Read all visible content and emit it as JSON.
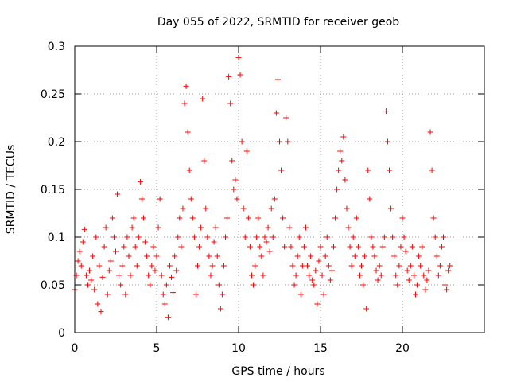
{
  "chart_data": {
    "type": "scatter",
    "title": "Day 055 of 2022, SRMTID for receiver geob",
    "xlabel": "GPS time / hours",
    "ylabel": "SRMTID / TECUs",
    "xlim": [
      0,
      25
    ],
    "ylim": [
      0,
      0.3
    ],
    "x_ticks": [
      0,
      5,
      10,
      15,
      20
    ],
    "x_tick_labels": [
      "0",
      "5",
      "10",
      "15",
      "20"
    ],
    "y_ticks": [
      0,
      0.05,
      0.1,
      0.15,
      0.2,
      0.25,
      0.3
    ],
    "y_tick_labels": [
      "0",
      "0.05",
      "0.1",
      "0.15",
      "0.2",
      "0.25",
      "0.3"
    ],
    "grid": true,
    "marker": "+",
    "color": "#ff0000",
    "series": [
      {
        "name": "SRMTID",
        "points": [
          [
            0.0,
            0.045
          ],
          [
            0.1,
            0.06
          ],
          [
            0.2,
            0.075
          ],
          [
            0.3,
            0.085
          ],
          [
            0.4,
            0.07
          ],
          [
            0.5,
            0.095
          ],
          [
            0.6,
            0.108
          ],
          [
            0.7,
            0.06
          ],
          [
            0.8,
            0.05
          ],
          [
            0.9,
            0.065
          ],
          [
            1.0,
            0.055
          ],
          [
            1.1,
            0.08
          ],
          [
            1.2,
            0.045
          ],
          [
            1.3,
            0.1
          ],
          [
            1.4,
            0.03
          ],
          [
            1.5,
            0.07
          ],
          [
            1.6,
            0.022
          ],
          [
            1.7,
            0.058
          ],
          [
            1.8,
            0.09
          ],
          [
            1.9,
            0.11
          ],
          [
            2.0,
            0.04
          ],
          [
            2.1,
            0.065
          ],
          [
            2.2,
            0.075
          ],
          [
            2.3,
            0.12
          ],
          [
            2.4,
            0.1
          ],
          [
            2.5,
            0.085
          ],
          [
            2.6,
            0.145
          ],
          [
            2.7,
            0.06
          ],
          [
            2.8,
            0.05
          ],
          [
            2.9,
            0.07
          ],
          [
            3.0,
            0.09
          ],
          [
            3.1,
            0.04
          ],
          [
            3.2,
            0.1
          ],
          [
            3.3,
            0.08
          ],
          [
            3.4,
            0.06
          ],
          [
            3.5,
            0.11
          ],
          [
            3.6,
            0.12
          ],
          [
            3.7,
            0.09
          ],
          [
            3.8,
            0.07
          ],
          [
            3.9,
            0.1
          ],
          [
            4.0,
            0.158
          ],
          [
            4.1,
            0.14
          ],
          [
            4.2,
            0.12
          ],
          [
            4.3,
            0.095
          ],
          [
            4.4,
            0.08
          ],
          [
            4.5,
            0.06
          ],
          [
            4.6,
            0.05
          ],
          [
            4.7,
            0.07
          ],
          [
            4.8,
            0.09
          ],
          [
            4.9,
            0.065
          ],
          [
            5.0,
            0.08
          ],
          [
            5.1,
            0.11
          ],
          [
            5.2,
            0.14
          ],
          [
            5.3,
            0.06
          ],
          [
            5.4,
            0.04
          ],
          [
            5.5,
            0.03
          ],
          [
            5.6,
            0.05
          ],
          [
            5.7,
            0.016
          ],
          [
            5.8,
            0.07
          ],
          [
            5.9,
            0.058
          ],
          [
            6.0,
            0.042
          ],
          [
            6.1,
            0.08
          ],
          [
            6.2,
            0.065
          ],
          [
            6.3,
            0.1
          ],
          [
            6.4,
            0.12
          ],
          [
            6.5,
            0.09
          ],
          [
            6.6,
            0.13
          ],
          [
            6.7,
            0.24
          ],
          [
            6.8,
            0.258
          ],
          [
            6.9,
            0.21
          ],
          [
            7.0,
            0.17
          ],
          [
            7.1,
            0.14
          ],
          [
            7.2,
            0.12
          ],
          [
            7.3,
            0.1
          ],
          [
            7.4,
            0.04
          ],
          [
            7.5,
            0.07
          ],
          [
            7.6,
            0.09
          ],
          [
            7.7,
            0.11
          ],
          [
            7.8,
            0.245
          ],
          [
            7.9,
            0.18
          ],
          [
            8.0,
            0.13
          ],
          [
            8.1,
            0.1
          ],
          [
            8.2,
            0.08
          ],
          [
            8.3,
            0.06
          ],
          [
            8.4,
            0.07
          ],
          [
            8.5,
            0.095
          ],
          [
            8.6,
            0.11
          ],
          [
            8.7,
            0.08
          ],
          [
            8.8,
            0.05
          ],
          [
            8.9,
            0.025
          ],
          [
            9.0,
            0.04
          ],
          [
            9.1,
            0.07
          ],
          [
            9.2,
            0.1
          ],
          [
            9.3,
            0.12
          ],
          [
            9.4,
            0.268
          ],
          [
            9.5,
            0.24
          ],
          [
            9.6,
            0.18
          ],
          [
            9.7,
            0.15
          ],
          [
            9.8,
            0.16
          ],
          [
            9.9,
            0.14
          ],
          [
            10.0,
            0.288
          ],
          [
            10.1,
            0.27
          ],
          [
            10.2,
            0.2
          ],
          [
            10.3,
            0.13
          ],
          [
            10.4,
            0.1
          ],
          [
            10.5,
            0.19
          ],
          [
            10.6,
            0.12
          ],
          [
            10.7,
            0.09
          ],
          [
            10.8,
            0.06
          ],
          [
            10.9,
            0.05
          ],
          [
            11.0,
            0.07
          ],
          [
            11.1,
            0.1
          ],
          [
            11.2,
            0.12
          ],
          [
            11.3,
            0.09
          ],
          [
            11.4,
            0.08
          ],
          [
            11.5,
            0.06
          ],
          [
            11.6,
            0.1
          ],
          [
            11.7,
            0.095
          ],
          [
            11.8,
            0.11
          ],
          [
            11.9,
            0.085
          ],
          [
            12.0,
            0.13
          ],
          [
            12.1,
            0.1
          ],
          [
            12.2,
            0.14
          ],
          [
            12.3,
            0.23
          ],
          [
            12.4,
            0.265
          ],
          [
            12.5,
            0.2
          ],
          [
            12.6,
            0.17
          ],
          [
            12.7,
            0.12
          ],
          [
            12.8,
            0.09
          ],
          [
            12.9,
            0.225
          ],
          [
            13.0,
            0.2
          ],
          [
            13.1,
            0.11
          ],
          [
            13.2,
            0.09
          ],
          [
            13.3,
            0.07
          ],
          [
            13.4,
            0.05
          ],
          [
            13.5,
            0.06
          ],
          [
            13.6,
            0.08
          ],
          [
            13.7,
            0.1
          ],
          [
            13.8,
            0.04
          ],
          [
            13.9,
            0.07
          ],
          [
            14.0,
            0.09
          ],
          [
            14.1,
            0.11
          ],
          [
            14.2,
            0.07
          ],
          [
            14.3,
            0.06
          ],
          [
            14.4,
            0.08
          ],
          [
            14.5,
            0.055
          ],
          [
            14.6,
            0.05
          ],
          [
            14.7,
            0.065
          ],
          [
            14.8,
            0.03
          ],
          [
            14.9,
            0.075
          ],
          [
            15.0,
            0.09
          ],
          [
            15.1,
            0.06
          ],
          [
            15.2,
            0.04
          ],
          [
            15.3,
            0.08
          ],
          [
            15.4,
            0.1
          ],
          [
            15.5,
            0.07
          ],
          [
            15.6,
            0.055
          ],
          [
            15.7,
            0.065
          ],
          [
            15.8,
            0.09
          ],
          [
            15.9,
            0.12
          ],
          [
            16.0,
            0.15
          ],
          [
            16.1,
            0.17
          ],
          [
            16.2,
            0.19
          ],
          [
            16.3,
            0.18
          ],
          [
            16.4,
            0.205
          ],
          [
            16.5,
            0.16
          ],
          [
            16.6,
            0.13
          ],
          [
            16.7,
            0.11
          ],
          [
            16.8,
            0.09
          ],
          [
            16.9,
            0.07
          ],
          [
            17.0,
            0.1
          ],
          [
            17.1,
            0.08
          ],
          [
            17.2,
            0.12
          ],
          [
            17.3,
            0.09
          ],
          [
            17.4,
            0.06
          ],
          [
            17.5,
            0.07
          ],
          [
            17.6,
            0.05
          ],
          [
            17.7,
            0.08
          ],
          [
            17.8,
            0.025
          ],
          [
            17.9,
            0.17
          ],
          [
            18.0,
            0.14
          ],
          [
            18.1,
            0.1
          ],
          [
            18.2,
            0.09
          ],
          [
            18.3,
            0.08
          ],
          [
            18.4,
            0.065
          ],
          [
            18.5,
            0.055
          ],
          [
            18.6,
            0.07
          ],
          [
            18.7,
            0.06
          ],
          [
            18.8,
            0.09
          ],
          [
            18.9,
            0.1
          ],
          [
            19.0,
            0.232
          ],
          [
            19.1,
            0.2
          ],
          [
            19.2,
            0.17
          ],
          [
            19.3,
            0.13
          ],
          [
            19.4,
            0.1
          ],
          [
            19.5,
            0.08
          ],
          [
            19.6,
            0.06
          ],
          [
            19.7,
            0.05
          ],
          [
            19.8,
            0.07
          ],
          [
            19.9,
            0.09
          ],
          [
            20.0,
            0.12
          ],
          [
            20.1,
            0.1
          ],
          [
            20.2,
            0.085
          ],
          [
            20.3,
            0.065
          ],
          [
            20.4,
            0.055
          ],
          [
            20.5,
            0.07
          ],
          [
            20.6,
            0.09
          ],
          [
            20.7,
            0.06
          ],
          [
            20.8,
            0.04
          ],
          [
            20.9,
            0.05
          ],
          [
            21.0,
            0.08
          ],
          [
            21.1,
            0.07
          ],
          [
            21.2,
            0.09
          ],
          [
            21.3,
            0.06
          ],
          [
            21.4,
            0.045
          ],
          [
            21.5,
            0.055
          ],
          [
            21.6,
            0.065
          ],
          [
            21.7,
            0.21
          ],
          [
            21.8,
            0.17
          ],
          [
            21.9,
            0.12
          ],
          [
            22.0,
            0.1
          ],
          [
            22.1,
            0.08
          ],
          [
            22.2,
            0.06
          ],
          [
            22.3,
            0.07
          ],
          [
            22.4,
            0.09
          ],
          [
            22.5,
            0.1
          ],
          [
            22.6,
            0.05
          ],
          [
            22.7,
            0.045
          ],
          [
            22.8,
            0.065
          ],
          [
            22.9,
            0.07
          ]
        ]
      }
    ]
  }
}
